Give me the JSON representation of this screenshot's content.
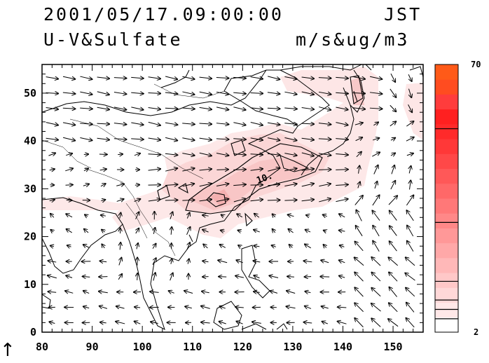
{
  "header": {
    "datetime": "2001/05/17.09:00:00",
    "timezone": "JST",
    "variable": "U-V&Sulfate",
    "units": "m/s&ug/m3"
  },
  "map": {
    "lon_range": [
      80,
      156
    ],
    "lat_range": [
      0,
      56
    ],
    "lon_ticks": [
      "80",
      "90",
      "100",
      "110",
      "120",
      "130",
      "140",
      "150"
    ],
    "lat_ticks": [
      "0",
      "10",
      "20",
      "30",
      "40",
      "50"
    ],
    "contour_label": "10.",
    "vector_key_glyph": "↑"
  },
  "colorbar": {
    "max_label": "70",
    "min_label": "2",
    "colors": [
      "#ffffff",
      "#ffe8e8",
      "#ffd8d8",
      "#ffc8c8",
      "#ffb8b8",
      "#ffa8a8",
      "#ff9898",
      "#ff8888",
      "#ff7878",
      "#ff6868",
      "#ff5858",
      "#ff4848",
      "#ff3838",
      "#ff2a2a",
      "#ff2020",
      "#ff3c3c",
      "#ff4c20",
      "#ff5a18"
    ]
  }
}
